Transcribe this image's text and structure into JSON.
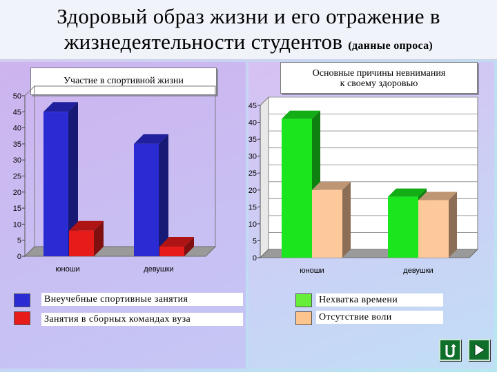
{
  "slide": {
    "title_line1": "Здоровый образ жизни и его отражение в",
    "title_line2": "жизнедеятельности студентов",
    "title_note": "(данные опроса)"
  },
  "chart_data": [
    {
      "type": "bar",
      "title": "Участие в спортивной жизни",
      "categories": [
        "юноши",
        "девушки"
      ],
      "series": [
        {
          "name": "Внеучебные спортивные занятия",
          "values": [
            45,
            35
          ],
          "color": "#2b2bd4"
        },
        {
          "name": "Занятия в сборных командах вуза",
          "values": [
            8,
            3
          ],
          "color": "#e81b1b"
        }
      ],
      "ylim": [
        0,
        50
      ],
      "yticks": [
        "0",
        "5",
        "10",
        "15",
        "20",
        "25",
        "30",
        "35",
        "40",
        "45",
        "50"
      ],
      "grid": false
    },
    {
      "type": "bar",
      "title": "Основные причины невнимания к своему здоровью",
      "title_lines": [
        "Основные причины невнимания",
        "к своему здоровью"
      ],
      "categories": [
        "юноши",
        "девушки"
      ],
      "series": [
        {
          "name": "Нехватка времени",
          "values": [
            41,
            18
          ],
          "color": "#19e61d"
        },
        {
          "name": "Отсутствие воли",
          "values": [
            20,
            17
          ],
          "color": "#fdc89a"
        }
      ],
      "ylim": [
        0,
        45
      ],
      "yticks": [
        "0",
        "5",
        "10",
        "15",
        "20",
        "25",
        "30",
        "35",
        "40",
        "45"
      ],
      "grid": true
    }
  ],
  "legend": {
    "left": [
      {
        "label": "Внеучебные спортивные занятия",
        "color": "#2b2bd4"
      },
      {
        "label": "Занятия в сборных командах вуза",
        "color": "#e81b1b"
      }
    ],
    "right": [
      {
        "label": "Нехватка времени",
        "color": "#66ee3a"
      },
      {
        "label": "Отсутствие воли",
        "color": "#fdc48e"
      }
    ]
  },
  "nav": {
    "return_icon": "return-icon",
    "next_icon": "play-next-icon"
  }
}
